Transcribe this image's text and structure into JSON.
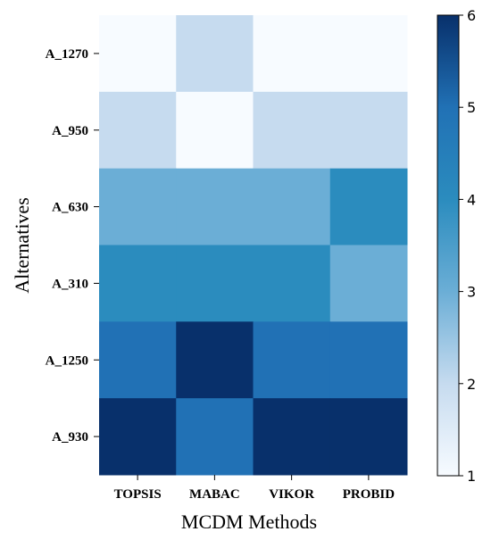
{
  "chart_data": {
    "type": "heatmap",
    "xlabel": "MCDM Methods",
    "ylabel": "Alternatives",
    "x_categories": [
      "TOPSIS",
      "MABAC",
      "VIKOR",
      "PROBID"
    ],
    "y_categories": [
      "A_1270",
      "A_950",
      "A_630",
      "A_310",
      "A_1250",
      "A_930"
    ],
    "values": [
      [
        1,
        2,
        1,
        1
      ],
      [
        2,
        1,
        2,
        2
      ],
      [
        3,
        3,
        3,
        4
      ],
      [
        4,
        4,
        4,
        3
      ],
      [
        5,
        6,
        5,
        5
      ],
      [
        6,
        5,
        6,
        6
      ]
    ],
    "colorbar": {
      "range": [
        1,
        6
      ],
      "ticks": [
        "1",
        "2",
        "3",
        "4",
        "5",
        "6"
      ],
      "colormap": "Blues",
      "stops": [
        "#f7fbff",
        "#c6dbef",
        "#6baed6",
        "#2b8cbe",
        "#2171b5",
        "#08306b"
      ]
    }
  }
}
